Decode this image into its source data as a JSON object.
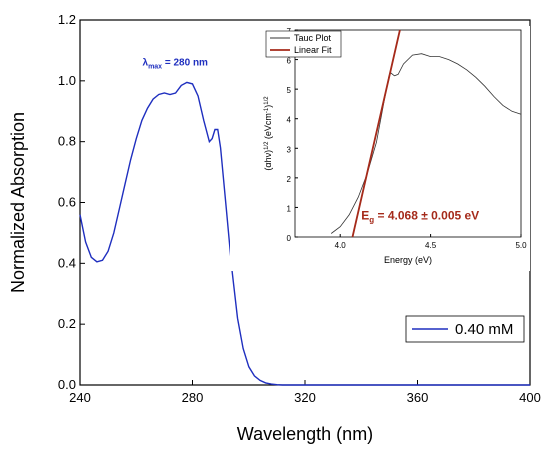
{
  "chart_data": [
    {
      "type": "line",
      "title": "",
      "xlabel": "Wavelength (nm)",
      "ylabel": "Normalized Absorption",
      "xlim": [
        240,
        400
      ],
      "ylim": [
        0.0,
        1.2
      ],
      "xticks": [
        "240",
        "280",
        "320",
        "360",
        "400"
      ],
      "yticks": [
        "0.0",
        "0.2",
        "0.4",
        "0.6",
        "0.8",
        "1.0",
        "1.2"
      ],
      "grid": false,
      "legend_position": "bottom-right",
      "annotation": {
        "prefix": "λ",
        "subscript": "max",
        "text": " = 280 nm",
        "x": 280,
        "y": 1.05
      },
      "series": [
        {
          "name": "0.40 mM",
          "color": "#1f2fbf",
          "x": [
            240,
            242,
            244,
            246,
            248,
            250,
            252,
            254,
            256,
            258,
            260,
            262,
            264,
            266,
            268,
            270,
            272,
            274,
            276,
            278,
            280,
            282,
            284,
            286,
            287,
            288,
            289,
            290,
            292,
            294,
            296,
            298,
            300,
            302,
            304,
            306,
            308,
            310,
            312,
            314,
            320,
            330,
            340,
            350,
            360,
            370,
            380,
            390,
            400
          ],
          "y": [
            0.56,
            0.47,
            0.42,
            0.405,
            0.41,
            0.44,
            0.5,
            0.58,
            0.66,
            0.74,
            0.81,
            0.87,
            0.91,
            0.94,
            0.955,
            0.96,
            0.955,
            0.96,
            0.985,
            0.995,
            0.99,
            0.95,
            0.87,
            0.8,
            0.81,
            0.84,
            0.84,
            0.78,
            0.58,
            0.38,
            0.22,
            0.12,
            0.06,
            0.03,
            0.015,
            0.007,
            0.003,
            0.001,
            0.0,
            0.0,
            0.0,
            0.0,
            0.0,
            0.0,
            0.0,
            0.0,
            0.0,
            0.0,
            0.0
          ]
        }
      ]
    },
    {
      "type": "line",
      "title": "",
      "xlabel": "Energy (eV)",
      "ylabel": "(αhν)^1/2 (eVcm^-1)^1/2",
      "ylabel_parts": {
        "main": "(αhν)",
        "sup1": "1/2",
        "mid": " (eVcm",
        "sup2": "-1",
        "close": ")",
        "sup3": "1/2"
      },
      "xlim": [
        3.75,
        5.0
      ],
      "ylim": [
        0,
        7
      ],
      "xticks": [
        "4.0",
        "4.5",
        "5.0"
      ],
      "yticks": [
        "0",
        "1",
        "2",
        "3",
        "4",
        "5",
        "6",
        "7"
      ],
      "grid": false,
      "legend_position": "top-left",
      "annotation": {
        "prefix": "E",
        "subscript": "g",
        "text": " = 4.068 ± 0.005 eV",
        "x": 4.1,
        "y": 0.6
      },
      "series": [
        {
          "name": "Tauc Plot",
          "color": "#333333",
          "x": [
            3.95,
            4.0,
            4.05,
            4.1,
            4.15,
            4.2,
            4.24,
            4.27,
            4.28,
            4.3,
            4.32,
            4.35,
            4.4,
            4.45,
            4.5,
            4.55,
            4.6,
            4.65,
            4.7,
            4.75,
            4.8,
            4.85,
            4.9,
            4.95,
            5.0
          ],
          "y": [
            0.12,
            0.35,
            0.75,
            1.35,
            2.15,
            3.2,
            4.5,
            5.45,
            5.55,
            5.45,
            5.5,
            5.85,
            6.15,
            6.2,
            6.1,
            6.1,
            6.0,
            5.85,
            5.65,
            5.4,
            5.1,
            4.75,
            4.45,
            4.25,
            4.15
          ]
        },
        {
          "name": "Linear Fit",
          "color": "#a52a1a",
          "x": [
            4.068,
            4.33
          ],
          "y": [
            0,
            7.0
          ]
        }
      ]
    }
  ]
}
